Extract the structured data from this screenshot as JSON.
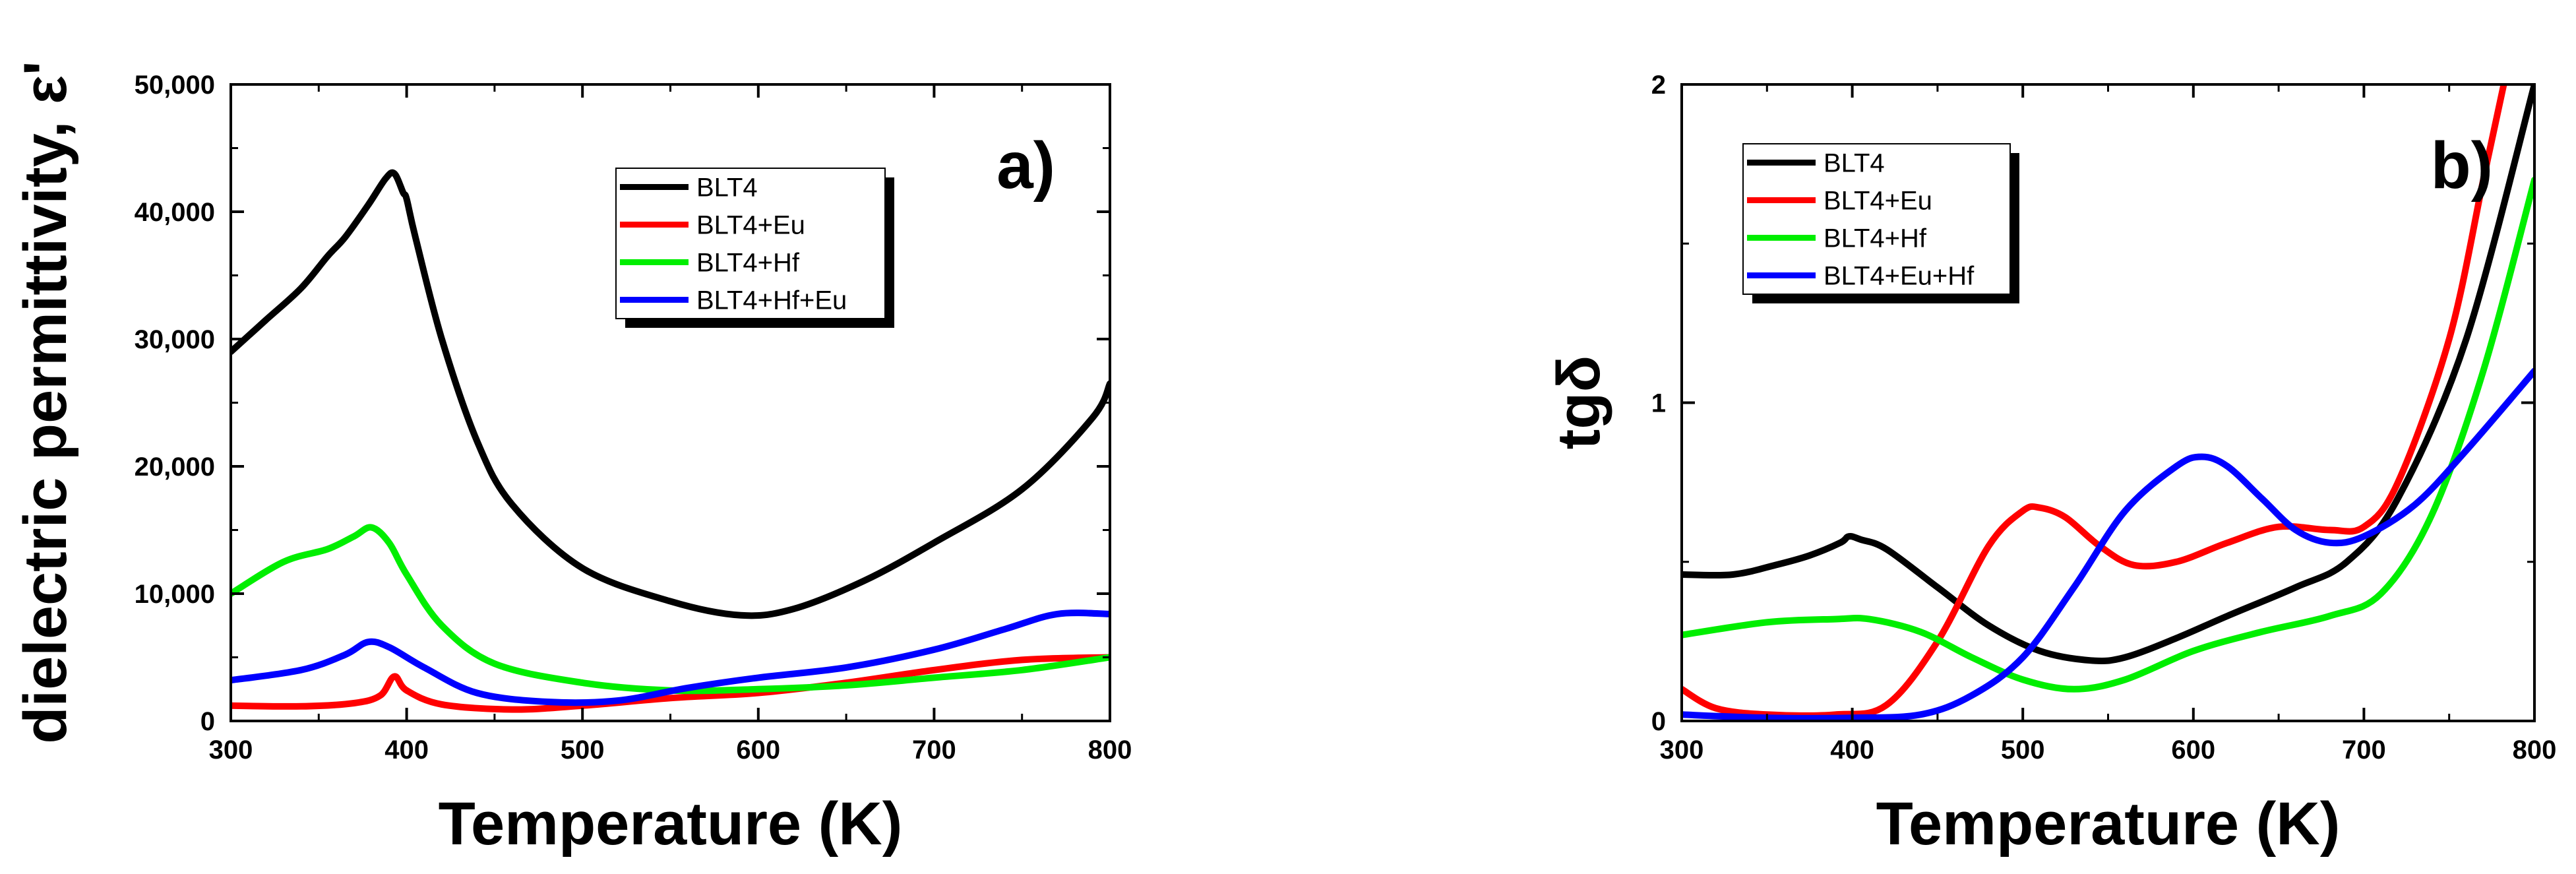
{
  "chart_data": [
    {
      "type": "line",
      "panel_label": "a)",
      "xlabel": "Temperature (K)",
      "ylabel": "dielectric permittivity, ε'",
      "xlim": [
        300,
        800
      ],
      "ylim": [
        0,
        50000
      ],
      "xticks": [
        300,
        400,
        500,
        600,
        700,
        800
      ],
      "yticks": [
        0,
        10000,
        20000,
        30000,
        40000,
        50000
      ],
      "xtick_labels": [
        "300",
        "400",
        "500",
        "600",
        "700",
        "800"
      ],
      "ytick_labels": [
        "0",
        "10,000",
        "20,000",
        "30,000",
        "40,000",
        "50,000"
      ],
      "legend_position": "top-center",
      "series": [
        {
          "name": "BLT4",
          "color": "#000000",
          "x": [
            300,
            320,
            340,
            355,
            365,
            378,
            388,
            393,
            398,
            400,
            405,
            420,
            440,
            460,
            500,
            550,
            590,
            620,
            660,
            700,
            750,
            790,
            800
          ],
          "y": [
            29000,
            31500,
            34000,
            36500,
            38000,
            40500,
            42600,
            43000,
            41500,
            41000,
            38000,
            30000,
            22000,
            17000,
            12000,
            9400,
            8300,
            8800,
            11000,
            14000,
            18200,
            23800,
            26500
          ]
        },
        {
          "name": "BLT4+Eu",
          "color": "#ff0000",
          "x": [
            300,
            340,
            370,
            385,
            393,
            400,
            420,
            460,
            500,
            550,
            600,
            650,
            700,
            750,
            800
          ],
          "y": [
            1200,
            1150,
            1400,
            2000,
            3500,
            2400,
            1300,
            900,
            1200,
            1800,
            2200,
            3000,
            4000,
            4800,
            5000
          ]
        },
        {
          "name": "BLT4+Hf",
          "color": "#00ee00",
          "x": [
            300,
            330,
            355,
            370,
            380,
            390,
            400,
            420,
            450,
            500,
            550,
            600,
            650,
            700,
            750,
            800
          ],
          "y": [
            10000,
            12500,
            13500,
            14500,
            15200,
            14000,
            11500,
            7500,
            4500,
            3000,
            2400,
            2500,
            2800,
            3400,
            4000,
            5000
          ]
        },
        {
          "name": "BLT4+Hf+Eu",
          "color": "#0000ff",
          "x": [
            300,
            340,
            365,
            378,
            390,
            410,
            440,
            480,
            520,
            560,
            600,
            650,
            700,
            740,
            770,
            800
          ],
          "y": [
            3200,
            4000,
            5200,
            6200,
            5800,
            4200,
            2200,
            1500,
            1600,
            2600,
            3400,
            4200,
            5600,
            7200,
            8400,
            8400
          ]
        }
      ]
    },
    {
      "type": "line",
      "panel_label": "b)",
      "xlabel": "Temperature (K)",
      "ylabel": "tgδ",
      "xlim": [
        300,
        800
      ],
      "ylim": [
        0,
        2
      ],
      "xticks": [
        300,
        400,
        500,
        600,
        700,
        800
      ],
      "yticks": [
        0,
        1,
        2
      ],
      "xtick_labels": [
        "300",
        "400",
        "500",
        "600",
        "700",
        "800"
      ],
      "ytick_labels": [
        "0",
        "1",
        "2"
      ],
      "legend_position": "top-left",
      "series": [
        {
          "name": "BLT4",
          "color": "#000000",
          "x": [
            300,
            330,
            355,
            375,
            393,
            398,
            405,
            420,
            450,
            480,
            510,
            540,
            560,
            590,
            620,
            660,
            690,
            720,
            760,
            800
          ],
          "y": [
            0.46,
            0.46,
            0.49,
            0.52,
            0.56,
            0.58,
            0.57,
            0.54,
            0.42,
            0.3,
            0.22,
            0.19,
            0.2,
            0.26,
            0.33,
            0.42,
            0.5,
            0.7,
            1.2,
            2.0
          ]
        },
        {
          "name": "BLT4+Eu",
          "color": "#ff0000",
          "x": [
            300,
            320,
            350,
            390,
            420,
            450,
            480,
            500,
            510,
            525,
            545,
            565,
            590,
            620,
            650,
            680,
            700,
            720,
            750,
            770,
            782
          ],
          "y": [
            0.1,
            0.04,
            0.02,
            0.02,
            0.05,
            0.25,
            0.55,
            0.66,
            0.67,
            0.64,
            0.55,
            0.49,
            0.5,
            0.56,
            0.61,
            0.6,
            0.61,
            0.75,
            1.2,
            1.7,
            2.0
          ]
        },
        {
          "name": "BLT4+Hf",
          "color": "#00ee00",
          "x": [
            300,
            350,
            390,
            410,
            440,
            470,
            500,
            530,
            560,
            600,
            640,
            680,
            710,
            740,
            770,
            800
          ],
          "y": [
            0.27,
            0.31,
            0.32,
            0.32,
            0.28,
            0.2,
            0.13,
            0.1,
            0.13,
            0.22,
            0.28,
            0.33,
            0.4,
            0.65,
            1.1,
            1.7
          ]
        },
        {
          "name": "BLT4+Eu+Hf",
          "color": "#0000ff",
          "x": [
            300,
            350,
            400,
            440,
            470,
            500,
            530,
            560,
            590,
            605,
            620,
            640,
            660,
            680,
            700,
            730,
            760,
            800
          ],
          "y": [
            0.02,
            0.01,
            0.01,
            0.02,
            0.08,
            0.2,
            0.42,
            0.66,
            0.8,
            0.83,
            0.8,
            0.7,
            0.6,
            0.56,
            0.58,
            0.68,
            0.85,
            1.1
          ]
        }
      ]
    }
  ]
}
